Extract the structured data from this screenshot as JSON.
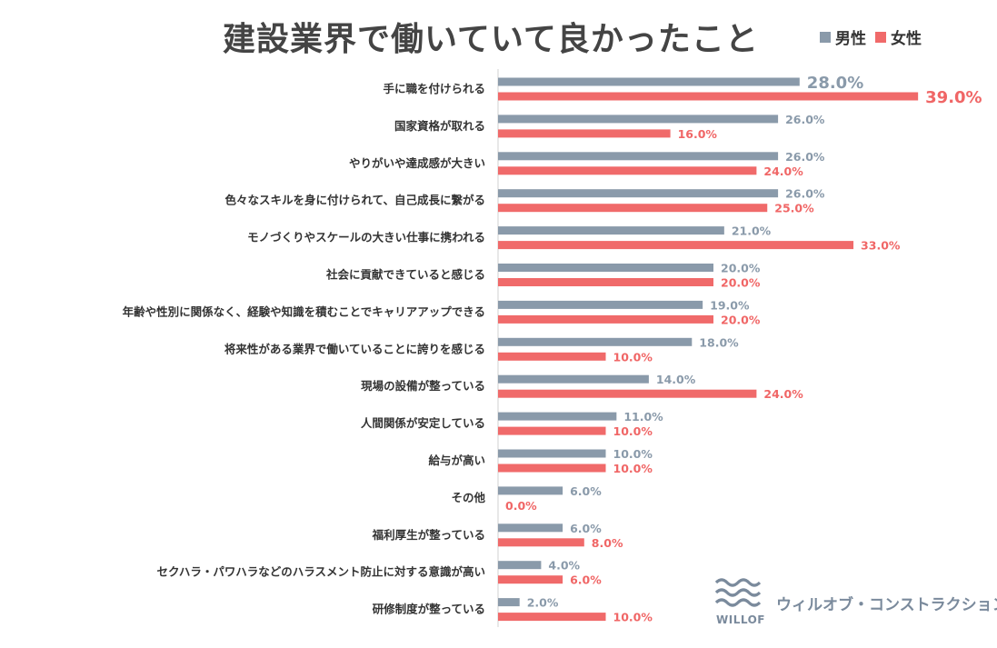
{
  "title": "建設業界で働いていて良かったこと",
  "legend": {
    "male": "男性",
    "female": "女性"
  },
  "colors": {
    "male": "#8a9aaa",
    "female": "#f06a6a",
    "title": "#444444",
    "logo": "#7a8a9c"
  },
  "logo": {
    "wordmark": "WILLOF",
    "name": "ウィルオブ・コンストラクション"
  },
  "chart_data": {
    "type": "bar",
    "orientation": "horizontal",
    "title": "建設業界で働いていて良かったこと",
    "legend_position": "top-right",
    "grid": false,
    "xlim": [
      0,
      40
    ],
    "categories": [
      "手に職を付けられる",
      "国家資格が取れる",
      "やりがいや達成感が大きい",
      "色々なスキルを身に付けられて、自己成長に繋がる",
      "モノづくりやスケールの大きい仕事に携われる",
      "社会に貢献できていると感じる",
      "年齢や性別に関係なく、経験や知識を積むことでキャリアアップできる",
      "将来性がある業界で働いていることに誇りを感じる",
      "現場の設備が整っている",
      "人間関係が安定している",
      "給与が高い",
      "その他",
      "福利厚生が整っている",
      "セクハラ・パワハラなどのハラスメント防止に対する意識が高い",
      "研修制度が整っている"
    ],
    "series": [
      {
        "name": "男性",
        "values": [
          28.0,
          26.0,
          26.0,
          26.0,
          21.0,
          20.0,
          19.0,
          18.0,
          14.0,
          11.0,
          10.0,
          6.0,
          6.0,
          4.0,
          2.0
        ],
        "labels": [
          "28.0%",
          "26.0%",
          "26.0%",
          "26.0%",
          "21.0%",
          "20.0%",
          "19.0%",
          "18.0%",
          "14.0%",
          "11.0%",
          "10.0%",
          "6.0%",
          "6.0%",
          "4.0%",
          "2.0%"
        ]
      },
      {
        "name": "女性",
        "values": [
          39.0,
          16.0,
          24.0,
          25.0,
          33.0,
          20.0,
          20.0,
          10.0,
          24.0,
          10.0,
          10.0,
          0.0,
          8.0,
          6.0,
          10.0
        ],
        "labels": [
          "39.0%",
          "16.0%",
          "24.0%",
          "25.0%",
          "33.0%",
          "20.0%",
          "20.0%",
          "10.0%",
          "24.0%",
          "10.0%",
          "10.0%",
          "0.0%",
          "8.0%",
          "6.0%",
          "10.0%"
        ]
      }
    ]
  }
}
